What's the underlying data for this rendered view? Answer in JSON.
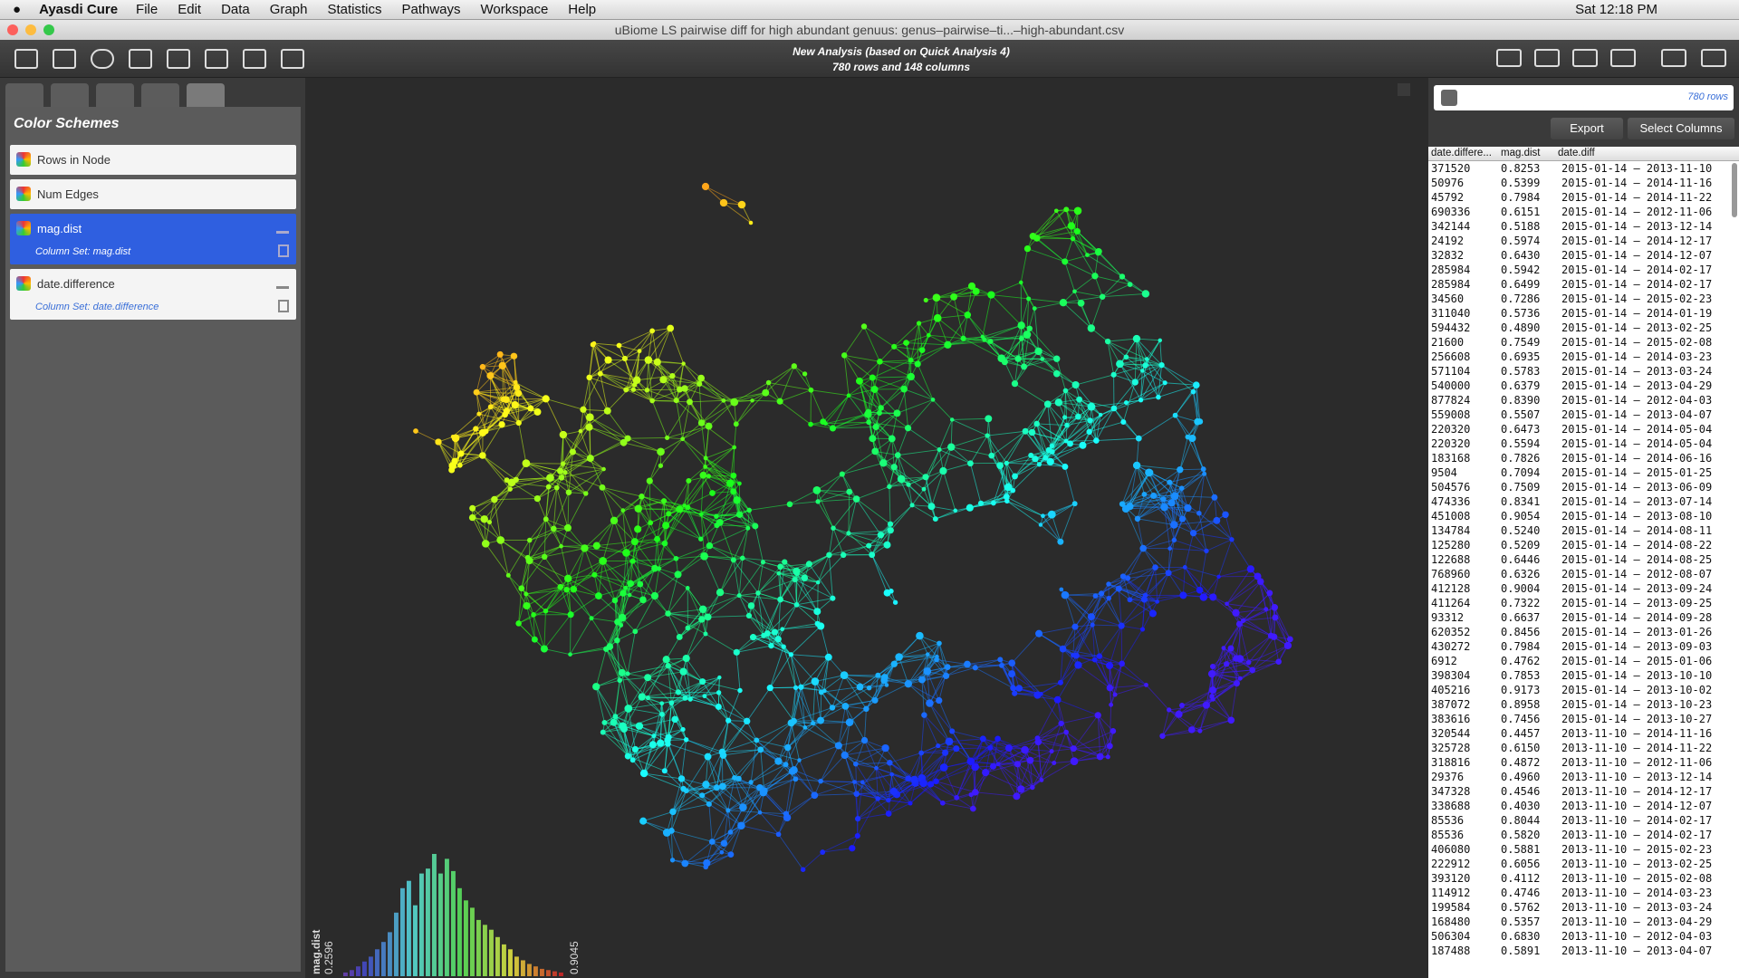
{
  "menu_bar": {
    "app": "Ayasdi Cure",
    "items": [
      "File",
      "Edit",
      "Data",
      "Graph",
      "Statistics",
      "Pathways",
      "Workspace",
      "Help"
    ],
    "clock": "Sat 12:18 PM"
  },
  "window": {
    "title": "uBiome LS pairwise diff for high abundant genuus: genus–pairwise–ti...–high-abundant.csv"
  },
  "toolbar": {
    "analysis": "New Analysis (based on Quick Analysis 4)",
    "size": "780 rows and 148 columns"
  },
  "color_schemes": {
    "title": "Color Schemes",
    "items": [
      {
        "label": "Rows in Node"
      },
      {
        "label": "Num Edges"
      },
      {
        "label": "mag.dist",
        "subtitle": "Column Set: mag.dist",
        "selected": true
      },
      {
        "label": "date.difference",
        "subtitle": "Column Set: date.difference"
      }
    ]
  },
  "histogram": {
    "label": "mag.dist",
    "min": "0.2596",
    "max": "0.9045",
    "counts": [
      3,
      5,
      8,
      12,
      16,
      22,
      28,
      36,
      52,
      72,
      78,
      58,
      84,
      88,
      100,
      84,
      96,
      86,
      72,
      62,
      56,
      46,
      42,
      38,
      32,
      26,
      22,
      16,
      13,
      10,
      8,
      6,
      5,
      4,
      3
    ]
  },
  "table_panel": {
    "row_count": "780 rows",
    "buttons": [
      "Export",
      "Select Columns"
    ],
    "columns": [
      "date.differe...",
      "mag.dist",
      "date.diff"
    ],
    "rows": [
      [
        "371520",
        "0.8253",
        "2015-01-14 – 2013-11-10"
      ],
      [
        "50976",
        "0.5399",
        "2015-01-14 – 2014-11-16"
      ],
      [
        "45792",
        "0.7984",
        "2015-01-14 – 2014-11-22"
      ],
      [
        "690336",
        "0.6151",
        "2015-01-14 – 2012-11-06"
      ],
      [
        "342144",
        "0.5188",
        "2015-01-14 – 2013-12-14"
      ],
      [
        "24192",
        "0.5974",
        "2015-01-14 – 2014-12-17"
      ],
      [
        "32832",
        "0.6430",
        "2015-01-14 – 2014-12-07"
      ],
      [
        "285984",
        "0.5942",
        "2015-01-14 – 2014-02-17"
      ],
      [
        "285984",
        "0.6499",
        "2015-01-14 – 2014-02-17"
      ],
      [
        "34560",
        "0.7286",
        "2015-01-14 – 2015-02-23"
      ],
      [
        "311040",
        "0.5736",
        "2015-01-14 – 2014-01-19"
      ],
      [
        "594432",
        "0.4890",
        "2015-01-14 – 2013-02-25"
      ],
      [
        "21600",
        "0.7549",
        "2015-01-14 – 2015-02-08"
      ],
      [
        "256608",
        "0.6935",
        "2015-01-14 – 2014-03-23"
      ],
      [
        "571104",
        "0.5783",
        "2015-01-14 – 2013-03-24"
      ],
      [
        "540000",
        "0.6379",
        "2015-01-14 – 2013-04-29"
      ],
      [
        "877824",
        "0.8390",
        "2015-01-14 – 2012-04-03"
      ],
      [
        "559008",
        "0.5507",
        "2015-01-14 – 2013-04-07"
      ],
      [
        "220320",
        "0.6473",
        "2015-01-14 – 2014-05-04"
      ],
      [
        "220320",
        "0.5594",
        "2015-01-14 – 2014-05-04"
      ],
      [
        "183168",
        "0.7826",
        "2015-01-14 – 2014-06-16"
      ],
      [
        "9504",
        "0.7094",
        "2015-01-14 – 2015-01-25"
      ],
      [
        "504576",
        "0.7509",
        "2015-01-14 – 2013-06-09"
      ],
      [
        "474336",
        "0.8341",
        "2015-01-14 – 2013-07-14"
      ],
      [
        "451008",
        "0.9054",
        "2015-01-14 – 2013-08-10"
      ],
      [
        "134784",
        "0.5240",
        "2015-01-14 – 2014-08-11"
      ],
      [
        "125280",
        "0.5209",
        "2015-01-14 – 2014-08-22"
      ],
      [
        "122688",
        "0.6446",
        "2015-01-14 – 2014-08-25"
      ],
      [
        "768960",
        "0.6326",
        "2015-01-14 – 2012-08-07"
      ],
      [
        "412128",
        "0.9004",
        "2015-01-14 – 2013-09-24"
      ],
      [
        "411264",
        "0.7322",
        "2015-01-14 – 2013-09-25"
      ],
      [
        "93312",
        "0.6637",
        "2015-01-14 – 2014-09-28"
      ],
      [
        "620352",
        "0.8456",
        "2015-01-14 – 2013-01-26"
      ],
      [
        "430272",
        "0.7984",
        "2015-01-14 – 2013-09-03"
      ],
      [
        "6912",
        "0.4762",
        "2015-01-14 – 2015-01-06"
      ],
      [
        "398304",
        "0.7853",
        "2015-01-14 – 2013-10-10"
      ],
      [
        "405216",
        "0.9173",
        "2015-01-14 – 2013-10-02"
      ],
      [
        "387072",
        "0.8958",
        "2015-01-14 – 2013-10-23"
      ],
      [
        "383616",
        "0.7456",
        "2015-01-14 – 2013-10-27"
      ],
      [
        "320544",
        "0.4457",
        "2013-11-10 – 2014-11-16"
      ],
      [
        "325728",
        "0.6150",
        "2013-11-10 – 2014-11-22"
      ],
      [
        "318816",
        "0.4872",
        "2013-11-10 – 2012-11-06"
      ],
      [
        "29376",
        "0.4960",
        "2013-11-10 – 2013-12-14"
      ],
      [
        "347328",
        "0.4546",
        "2013-11-10 – 2014-12-17"
      ],
      [
        "338688",
        "0.4030",
        "2013-11-10 – 2014-12-07"
      ],
      [
        "85536",
        "0.8044",
        "2013-11-10 – 2014-02-17"
      ],
      [
        "85536",
        "0.5820",
        "2013-11-10 – 2014-02-17"
      ],
      [
        "406080",
        "0.5881",
        "2013-11-10 – 2015-02-23"
      ],
      [
        "222912",
        "0.6056",
        "2013-11-10 – 2013-02-25"
      ],
      [
        "393120",
        "0.4112",
        "2013-11-10 – 2015-02-08"
      ],
      [
        "114912",
        "0.4746",
        "2013-11-10 – 2014-03-23"
      ],
      [
        "199584",
        "0.5762",
        "2013-11-10 – 2013-03-24"
      ],
      [
        "168480",
        "0.5357",
        "2013-11-10 – 2013-04-29"
      ],
      [
        "506304",
        "0.6830",
        "2013-11-10 – 2012-04-03"
      ],
      [
        "187488",
        "0.5891",
        "2013-11-10 – 2013-04-07"
      ]
    ]
  }
}
